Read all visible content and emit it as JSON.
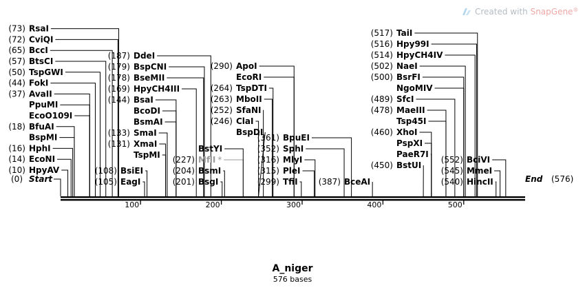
{
  "watermark": {
    "prefix": "Created with ",
    "brand": "SnapGene",
    "mark": "®",
    "icon": "snapgene-logo-icon"
  },
  "sequence": {
    "name": "A_niger",
    "length_label": "576 bases",
    "length": 576
  },
  "colors": {
    "text": "#000000",
    "muted": "#999999",
    "backbone": "#000000",
    "watermark": "#b5bcc3",
    "watermark_brand": "#f0a8a8"
  },
  "axis": {
    "min": 1,
    "max": 576,
    "ticks": [
      100,
      200,
      300,
      400,
      500
    ]
  },
  "left_end": {
    "pos": 0,
    "pos_label": "(0)",
    "label": "Start"
  },
  "right_end": {
    "pos": 576,
    "pos_label": "(576)",
    "label": "End"
  },
  "sites": [
    {
      "name": "HpyAV",
      "pos": 10,
      "pos_label": "(10)",
      "column": "a"
    },
    {
      "name": "EcoNI",
      "pos": 14,
      "pos_label": "(14)",
      "column": "a"
    },
    {
      "name": "HphI",
      "pos": 16,
      "pos_label": "(16)",
      "column": "a"
    },
    {
      "name": "BspMI",
      "pos": 18,
      "pos_label": "",
      "column": "a"
    },
    {
      "name": "BfuAI",
      "pos": 18,
      "pos_label": "(18)",
      "column": "a"
    },
    {
      "name": "EcoO109I",
      "pos": 37,
      "pos_label": "",
      "column": "a"
    },
    {
      "name": "PpuMI",
      "pos": 37,
      "pos_label": "",
      "column": "a"
    },
    {
      "name": "AvaII",
      "pos": 37,
      "pos_label": "(37)",
      "column": "a"
    },
    {
      "name": "FokI",
      "pos": 44,
      "pos_label": "(44)",
      "column": "a"
    },
    {
      "name": "TspGWI",
      "pos": 50,
      "pos_label": "(50)",
      "column": "a"
    },
    {
      "name": "BtsCI",
      "pos": 57,
      "pos_label": "(57)",
      "column": "a"
    },
    {
      "name": "BccI",
      "pos": 65,
      "pos_label": "(65)",
      "column": "a"
    },
    {
      "name": "CviQI",
      "pos": 72,
      "pos_label": "(72)",
      "column": "a"
    },
    {
      "name": "RsaI",
      "pos": 73,
      "pos_label": "(73)",
      "column": "a"
    },
    {
      "name": "EagI",
      "pos": 105,
      "pos_label": "(105)",
      "column": "b"
    },
    {
      "name": "BsiEI",
      "pos": 108,
      "pos_label": "(108)",
      "column": "b"
    },
    {
      "name": "TspMI",
      "pos": 131,
      "pos_label": "",
      "column": "c"
    },
    {
      "name": "XmaI",
      "pos": 131,
      "pos_label": "(131)",
      "column": "c"
    },
    {
      "name": "SmaI",
      "pos": 133,
      "pos_label": "(133)",
      "column": "c"
    },
    {
      "name": "BsmAI",
      "pos": 144,
      "pos_label": "",
      "column": "c"
    },
    {
      "name": "BcoDI",
      "pos": 144,
      "pos_label": "",
      "column": "c"
    },
    {
      "name": "BsaI",
      "pos": 144,
      "pos_label": "(144)",
      "column": "c"
    },
    {
      "name": "HpyCH4III",
      "pos": 169,
      "pos_label": "(169)",
      "column": "c"
    },
    {
      "name": "BseMII",
      "pos": 178,
      "pos_label": "(178)",
      "column": "c"
    },
    {
      "name": "BspCNI",
      "pos": 179,
      "pos_label": "(179)",
      "column": "c"
    },
    {
      "name": "DdeI",
      "pos": 187,
      "pos_label": "(187)",
      "column": "c"
    },
    {
      "name": "BsgI",
      "pos": 201,
      "pos_label": "(201)",
      "column": "d"
    },
    {
      "name": "BsmI",
      "pos": 204,
      "pos_label": "(204)",
      "column": "d"
    },
    {
      "name": "MflI",
      "pos": 227,
      "pos_label": "(227)",
      "column": "d",
      "muted": true,
      "star": "*"
    },
    {
      "name": "BstYI",
      "pos": 227,
      "pos_label": "",
      "column": "d"
    },
    {
      "name": "BspDI",
      "pos": 246,
      "pos_label": "",
      "column": "e"
    },
    {
      "name": "ClaI",
      "pos": 246,
      "pos_label": "(246)",
      "column": "e"
    },
    {
      "name": "SfaNI",
      "pos": 252,
      "pos_label": "(252)",
      "column": "e"
    },
    {
      "name": "MboII",
      "pos": 263,
      "pos_label": "(263)",
      "column": "e"
    },
    {
      "name": "TspDTI",
      "pos": 264,
      "pos_label": "(264)",
      "column": "e"
    },
    {
      "name": "EcoRI",
      "pos": 290,
      "pos_label": "",
      "column": "e"
    },
    {
      "name": "ApoI",
      "pos": 290,
      "pos_label": "(290)",
      "column": "e"
    },
    {
      "name": "TfiI",
      "pos": 299,
      "pos_label": "(299)",
      "column": "f"
    },
    {
      "name": "PleI",
      "pos": 315,
      "pos_label": "(315)",
      "column": "f"
    },
    {
      "name": "MlyI",
      "pos": 316,
      "pos_label": "(316)",
      "column": "f"
    },
    {
      "name": "SphI",
      "pos": 352,
      "pos_label": "(352)",
      "column": "f"
    },
    {
      "name": "BpuEI",
      "pos": 361,
      "pos_label": "(361)",
      "column": "f"
    },
    {
      "name": "BceAI",
      "pos": 387,
      "pos_label": "(387)",
      "column": "g"
    },
    {
      "name": "BstUI",
      "pos": 450,
      "pos_label": "(450)",
      "column": "h"
    },
    {
      "name": "PaeR7I",
      "pos": 460,
      "pos_label": "",
      "column": "h"
    },
    {
      "name": "PspXI",
      "pos": 460,
      "pos_label": "",
      "column": "h"
    },
    {
      "name": "XhoI",
      "pos": 460,
      "pos_label": "(460)",
      "column": "h"
    },
    {
      "name": "Tsp45I",
      "pos": 478,
      "pos_label": "",
      "column": "h"
    },
    {
      "name": "MaeIII",
      "pos": 478,
      "pos_label": "(478)",
      "column": "h"
    },
    {
      "name": "SfcI",
      "pos": 489,
      "pos_label": "(489)",
      "column": "h"
    },
    {
      "name": "NgoMIV",
      "pos": 500,
      "pos_label": "",
      "column": "h"
    },
    {
      "name": "BsrFI",
      "pos": 500,
      "pos_label": "(500)",
      "column": "h"
    },
    {
      "name": "NaeI",
      "pos": 502,
      "pos_label": "(502)",
      "column": "h"
    },
    {
      "name": "HpyCH4IV",
      "pos": 514,
      "pos_label": "(514)",
      "column": "h"
    },
    {
      "name": "Hpy99I",
      "pos": 516,
      "pos_label": "(516)",
      "column": "h"
    },
    {
      "name": "TaiI",
      "pos": 517,
      "pos_label": "(517)",
      "column": "h"
    },
    {
      "name": "HincII",
      "pos": 540,
      "pos_label": "(540)",
      "column": "i"
    },
    {
      "name": "MmeI",
      "pos": 545,
      "pos_label": "(545)",
      "column": "i"
    },
    {
      "name": "BciVI",
      "pos": 552,
      "pos_label": "(552)",
      "column": "i"
    }
  ]
}
